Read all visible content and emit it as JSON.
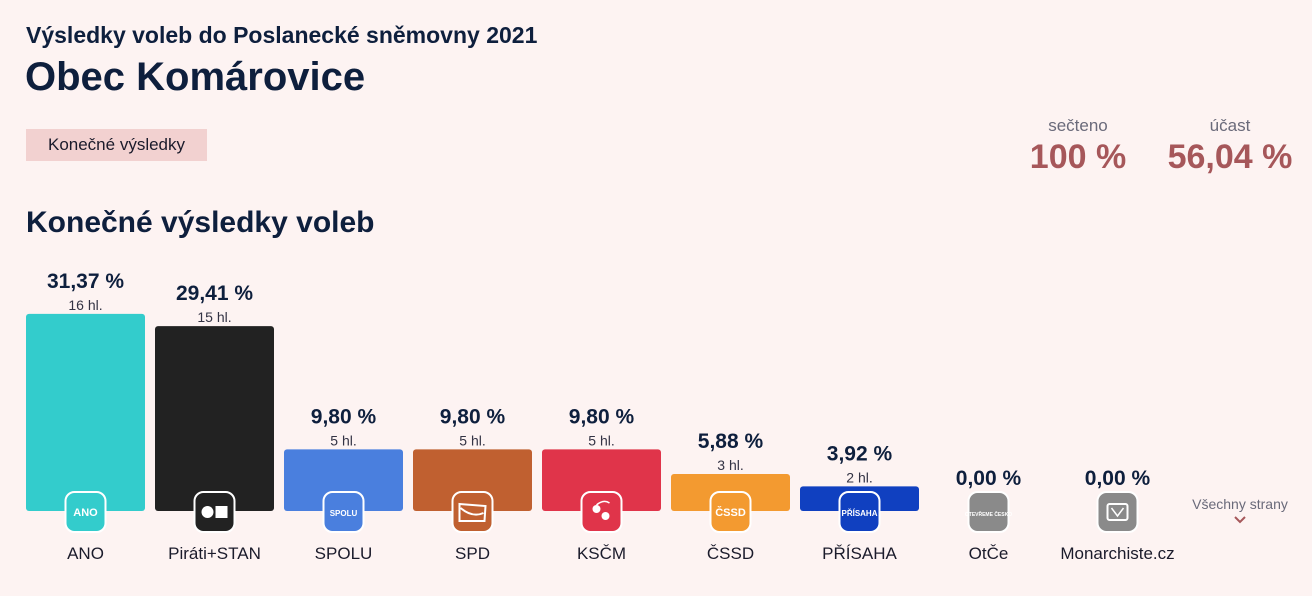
{
  "header": {
    "supertitle": "Výsledky voleb do Poslanecké sněmovny 2021",
    "title": "Obec Komárovice",
    "status_badge": "Konečné výsledky"
  },
  "stats": {
    "counted_label": "sečteno",
    "counted_value": "100 %",
    "turnout_label": "účast",
    "turnout_value": "56,04 %"
  },
  "section_title": "Konečné výsledky voleb",
  "all_parties_label": "Všechny strany",
  "chart_data": {
    "type": "bar",
    "categories": [
      "ANO",
      "Piráti+STAN",
      "SPOLU",
      "SPD",
      "KSČM",
      "ČSSD",
      "PŘÍSAHA",
      "OtČe",
      "Monarchiste.cz"
    ],
    "values": [
      31.37,
      29.41,
      9.8,
      9.8,
      9.8,
      5.88,
      3.92,
      0.0,
      0.0
    ],
    "value_labels": [
      "31,37 %",
      "29,41 %",
      "9,80 %",
      "9,80 %",
      "9,80 %",
      "5,88 %",
      "3,92 %",
      "0,00 %",
      "0,00 %"
    ],
    "votes_labels": [
      "16 hl.",
      "15 hl.",
      "5 hl.",
      "5 hl.",
      "5 hl.",
      "3 hl.",
      "2 hl.",
      "0 hl.",
      "0 hl."
    ],
    "colors": [
      "#33cccc",
      "#222222",
      "#4a7fde",
      "#c06030",
      "#e0344a",
      "#f39a30",
      "#1040c0",
      "#8a8a8a",
      "#8a8a8a"
    ],
    "logo_icons": [
      "ano-logo-icon",
      "pirati-stan-logo-icon",
      "spolu-logo-icon",
      "spd-logo-icon",
      "kscm-logo-icon",
      "cssd-logo-icon",
      "prisaha-logo-icon",
      "otce-logo-icon",
      "monarchiste-logo-icon"
    ],
    "logo_texts": [
      "ANO",
      "",
      "SPOLU",
      "",
      "",
      "ČSSD",
      "PŘÍSAHA",
      "OTEVŘEME ČESKO",
      ""
    ],
    "ylim": [
      0,
      35
    ],
    "title": "Konečné výsledky voleb",
    "xlabel": "",
    "ylabel": ""
  }
}
